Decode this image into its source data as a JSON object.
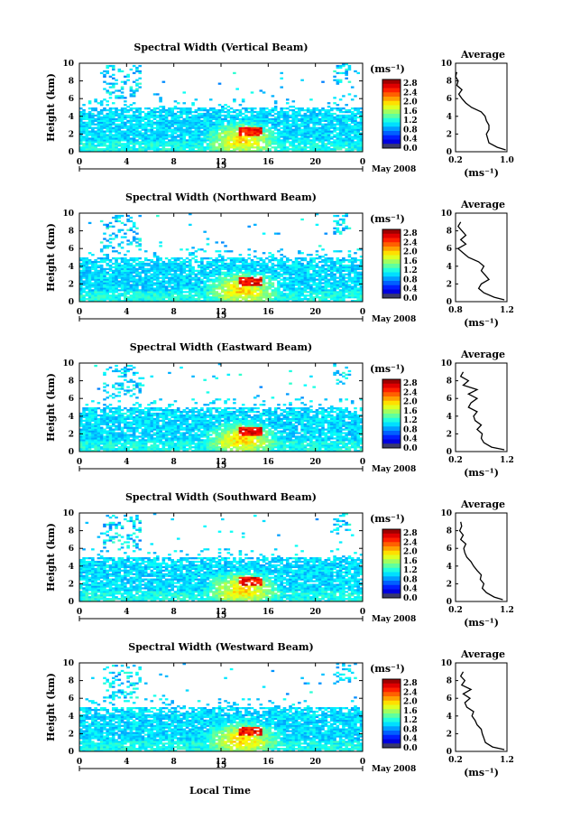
{
  "figure": {
    "xlabel": "Local Time",
    "date_label": "May 2008",
    "day_label": "15",
    "unit_label": "(ms⁻¹)",
    "average_title": "Average",
    "colorbar_ticks": [
      "2.8",
      "2.4",
      "2.0",
      "1.6",
      "1.2",
      "0.8",
      "0.4",
      "0.0"
    ]
  },
  "chart_data": [
    {
      "type": "heatmap",
      "title": "Spectral Width (Vertical Beam)",
      "ylabel": "Height (km)",
      "xlabel": "Local Time",
      "xlim": [
        0,
        24
      ],
      "ylim": [
        0,
        10
      ],
      "x_ticks": [
        "0",
        "4",
        "8",
        "12",
        "16",
        "20",
        "0"
      ],
      "y_ticks": [
        "0",
        "2",
        "4",
        "6",
        "8",
        "10"
      ],
      "colorbar": {
        "label": "(ms⁻¹)",
        "range": [
          0,
          3.0
        ]
      },
      "profile": {
        "title": "Average",
        "xlabel": "(ms⁻¹)",
        "xlim": [
          0.2,
          1.0
        ],
        "x_ticks": [
          "0.2",
          "1.0"
        ],
        "y_ticks": [
          "0",
          "2",
          "4",
          "6",
          "8",
          "10"
        ],
        "heights": [
          0.2,
          0.5,
          1.0,
          1.5,
          2.0,
          2.5,
          3.0,
          3.5,
          4.0,
          4.5,
          5.0,
          5.5,
          6.0,
          6.5,
          7.0,
          7.5,
          8.0,
          8.5,
          9.0
        ],
        "values": [
          0.98,
          0.85,
          0.72,
          0.7,
          0.68,
          0.72,
          0.72,
          0.68,
          0.66,
          0.6,
          0.45,
          0.36,
          0.3,
          0.25,
          0.3,
          0.22,
          0.24,
          0.2,
          0.22
        ]
      }
    },
    {
      "type": "heatmap",
      "title": "Spectral Width (Northward Beam)",
      "ylabel": "Height (km)",
      "xlabel": "Local Time",
      "xlim": [
        0,
        24
      ],
      "ylim": [
        0,
        10
      ],
      "x_ticks": [
        "0",
        "4",
        "8",
        "12",
        "16",
        "20",
        "0"
      ],
      "y_ticks": [
        "0",
        "2",
        "4",
        "6",
        "8",
        "10"
      ],
      "colorbar": {
        "label": "(ms⁻¹)",
        "range": [
          0,
          3.0
        ]
      },
      "profile": {
        "title": "Average",
        "xlabel": "(ms⁻¹)",
        "xlim": [
          0.8,
          1.2
        ],
        "x_ticks": [
          "0.8",
          "1.2"
        ],
        "y_ticks": [
          "0",
          "2",
          "4",
          "6",
          "8",
          "10"
        ],
        "heights": [
          0.2,
          0.5,
          1.0,
          1.5,
          2.0,
          2.5,
          3.0,
          3.5,
          4.0,
          4.5,
          5.0,
          5.5,
          6.0,
          6.5,
          7.0,
          7.5,
          8.0,
          8.5,
          9.0
        ],
        "values": [
          1.18,
          1.1,
          1.02,
          0.98,
          1.0,
          1.06,
          1.03,
          1.0,
          1.02,
          0.98,
          0.9,
          0.86,
          0.82,
          0.88,
          0.84,
          0.88,
          0.85,
          0.82,
          0.84
        ]
      }
    },
    {
      "type": "heatmap",
      "title": "Spectral Width (Eastward Beam)",
      "ylabel": "Height (km)",
      "xlabel": "Local Time",
      "xlim": [
        0,
        24
      ],
      "ylim": [
        0,
        10
      ],
      "x_ticks": [
        "0",
        "4",
        "8",
        "12",
        "16",
        "20",
        "0"
      ],
      "y_ticks": [
        "0",
        "2",
        "4",
        "6",
        "8",
        "10"
      ],
      "colorbar": {
        "label": "(ms⁻¹)",
        "range": [
          0,
          3.0
        ]
      },
      "profile": {
        "title": "Average",
        "xlabel": "(ms⁻¹)",
        "xlim": [
          0.2,
          1.2
        ],
        "x_ticks": [
          "0.2",
          "1.2"
        ],
        "y_ticks": [
          "0",
          "2",
          "4",
          "6",
          "8",
          "10"
        ],
        "heights": [
          0.2,
          0.5,
          1.0,
          1.5,
          2.0,
          2.5,
          3.0,
          3.5,
          4.0,
          4.5,
          5.0,
          5.5,
          6.0,
          6.5,
          7.0,
          7.5,
          8.0,
          8.5,
          9.0
        ],
        "values": [
          1.15,
          0.9,
          0.75,
          0.7,
          0.72,
          0.62,
          0.7,
          0.58,
          0.55,
          0.62,
          0.45,
          0.5,
          0.62,
          0.45,
          0.62,
          0.35,
          0.45,
          0.3,
          0.35
        ]
      }
    },
    {
      "type": "heatmap",
      "title": "Spectral Width (Southward Beam)",
      "ylabel": "Height (km)",
      "xlabel": "Local Time",
      "xlim": [
        0,
        24
      ],
      "ylim": [
        0,
        10
      ],
      "x_ticks": [
        "0",
        "4",
        "8",
        "12",
        "16",
        "20",
        "0"
      ],
      "y_ticks": [
        "0",
        "2",
        "4",
        "6",
        "8",
        "10"
      ],
      "colorbar": {
        "label": "(ms⁻¹)",
        "range": [
          0,
          3.0
        ]
      },
      "profile": {
        "title": "Average",
        "xlabel": "(ms⁻¹)",
        "xlim": [
          0.2,
          1.2
        ],
        "x_ticks": [
          "0.2",
          "1.2"
        ],
        "y_ticks": [
          "0",
          "2",
          "4",
          "6",
          "8",
          "10"
        ],
        "heights": [
          0.2,
          0.5,
          1.0,
          1.5,
          2.0,
          2.5,
          3.0,
          3.5,
          4.0,
          4.5,
          5.0,
          5.5,
          6.0,
          6.5,
          7.0,
          7.5,
          8.0,
          8.5,
          9.0
        ],
        "values": [
          1.12,
          0.95,
          0.8,
          0.72,
          0.75,
          0.68,
          0.7,
          0.62,
          0.55,
          0.5,
          0.42,
          0.38,
          0.36,
          0.4,
          0.3,
          0.35,
          0.28,
          0.32,
          0.3
        ]
      }
    },
    {
      "type": "heatmap",
      "title": "Spectral Width (Westward Beam)",
      "ylabel": "Height (km)",
      "xlabel": "Local Time",
      "xlim": [
        0,
        24
      ],
      "ylim": [
        0,
        10
      ],
      "x_ticks": [
        "0",
        "4",
        "8",
        "12",
        "16",
        "20",
        "0"
      ],
      "y_ticks": [
        "0",
        "2",
        "4",
        "6",
        "8",
        "10"
      ],
      "colorbar": {
        "label": "(ms⁻¹)",
        "range": [
          0,
          3.0
        ]
      },
      "profile": {
        "title": "Average",
        "xlabel": "(ms⁻¹)",
        "xlim": [
          0.2,
          1.2
        ],
        "x_ticks": [
          "0.2",
          "1.2"
        ],
        "y_ticks": [
          "0",
          "2",
          "4",
          "6",
          "8",
          "10"
        ],
        "heights": [
          0.2,
          0.5,
          1.0,
          1.5,
          2.0,
          2.5,
          3.0,
          3.5,
          4.0,
          4.5,
          5.0,
          5.5,
          6.0,
          6.5,
          7.0,
          7.5,
          8.0,
          8.5,
          9.0
        ],
        "values": [
          1.15,
          0.92,
          0.78,
          0.75,
          0.72,
          0.7,
          0.62,
          0.58,
          0.52,
          0.55,
          0.42,
          0.38,
          0.48,
          0.35,
          0.5,
          0.32,
          0.38,
          0.3,
          0.35
        ]
      }
    }
  ]
}
